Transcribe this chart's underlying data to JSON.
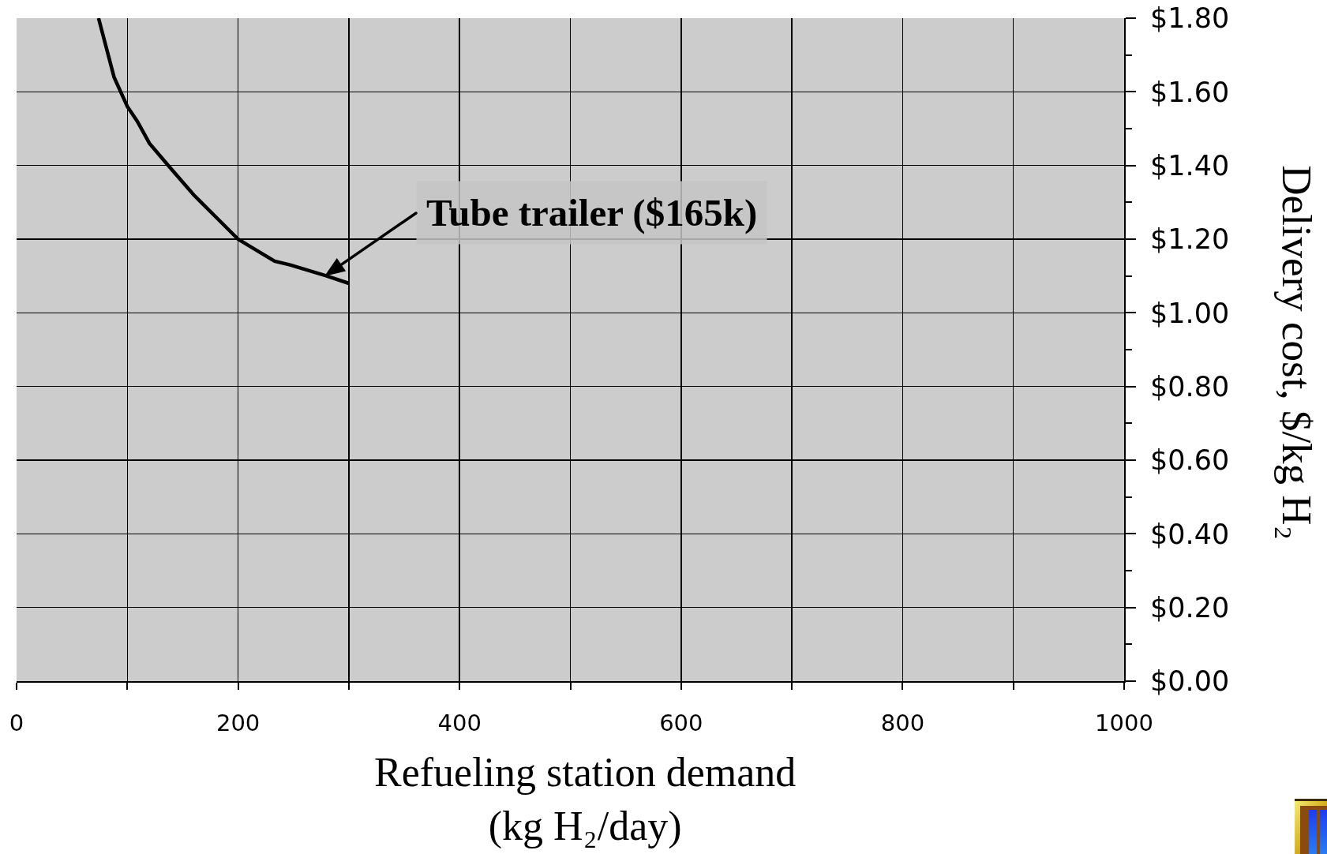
{
  "chart_data": {
    "type": "line",
    "xlabel": "Refueling station demand\n(kg H₂/day)",
    "ylabel": "Delivery cost, $/kg H₂",
    "x": [
      74,
      88,
      100,
      109,
      120,
      137,
      160,
      180,
      200,
      211,
      233,
      247,
      280,
      300
    ],
    "values": [
      1.8,
      1.64,
      1.56,
      1.52,
      1.46,
      1.4,
      1.32,
      1.26,
      1.2,
      1.18,
      1.14,
      1.13,
      1.1,
      1.08
    ],
    "color": "#000000",
    "xlim": [
      0,
      1000
    ],
    "xticks": [
      0,
      {
        "value": 100,
        "label": null
      },
      200,
      {
        "value": 300,
        "label": null
      },
      400,
      {
        "value": 500,
        "label": null
      },
      600,
      {
        "value": 700,
        "label": null
      },
      800,
      {
        "value": 900,
        "label": null
      },
      1000
    ],
    "ylim": [
      0,
      1.8
    ],
    "yticks": [
      {
        "value": 0,
        "label": "$0.00"
      },
      {
        "value": 0.1,
        "label": null
      },
      {
        "value": 0.2,
        "label": "$0.20"
      },
      {
        "value": 0.3,
        "label": null
      },
      {
        "value": 0.4,
        "label": "$0.40"
      },
      {
        "value": 0.5,
        "label": null
      },
      {
        "value": 0.6,
        "label": "$0.60"
      },
      {
        "value": 0.7,
        "label": null
      },
      {
        "value": 0.8,
        "label": "$0.80"
      },
      {
        "value": 0.9,
        "label": null
      },
      {
        "value": 1.0,
        "label": "$1.00"
      },
      {
        "value": 1.1,
        "label": null
      },
      {
        "value": 1.2,
        "label": "$1.20"
      },
      {
        "value": 1.3,
        "label": null
      },
      {
        "value": 1.4,
        "label": "$1.40"
      },
      {
        "value": 1.5,
        "label": null
      },
      {
        "value": 1.6,
        "label": "$1.60"
      },
      {
        "value": 1.7,
        "label": null
      },
      {
        "value": 1.8,
        "label": "$1.80"
      }
    ],
    "grid": true,
    "marker": "none",
    "line_style": "solid",
    "annotations": [
      {
        "text": "Tube trailer ($165k)",
        "x": 278,
        "y": 1.1
      }
    ]
  }
}
